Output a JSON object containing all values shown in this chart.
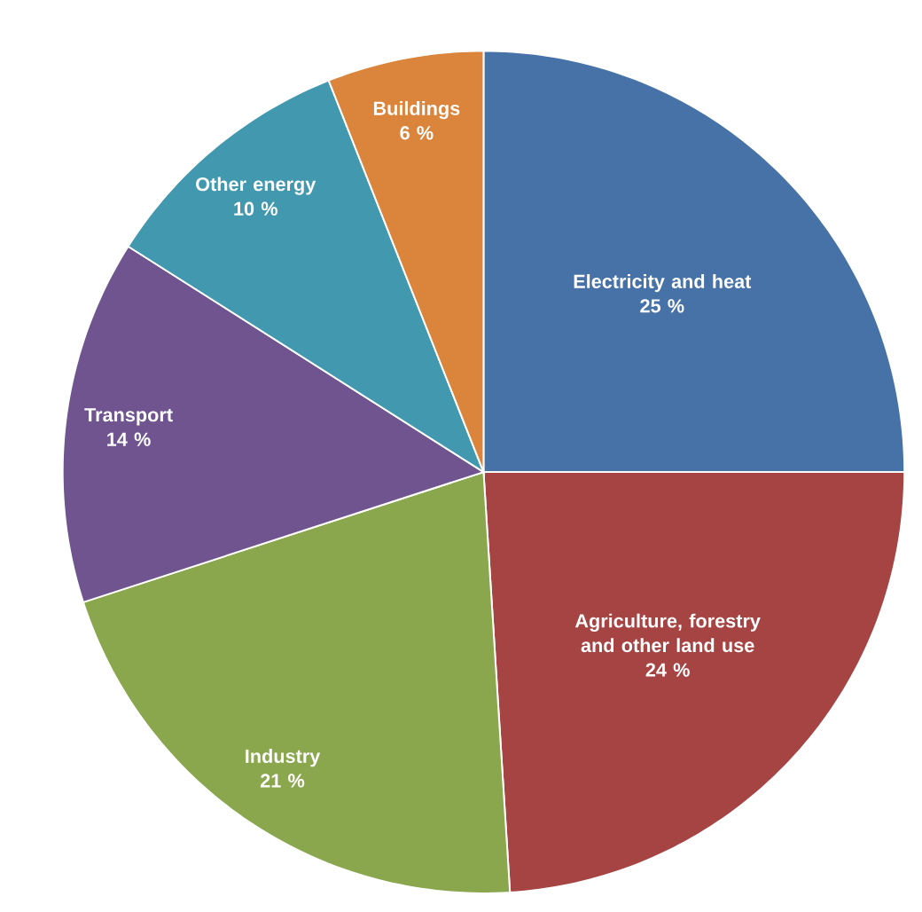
{
  "chart_data": {
    "type": "pie",
    "categories": [
      "Electricity and heat",
      "Agriculture, forestry and other land use",
      "Industry",
      "Transport",
      "Other energy",
      "Buildings"
    ],
    "values": [
      25,
      24,
      21,
      14,
      10,
      6
    ],
    "value_labels": [
      "25 %",
      "24 %",
      "21 %",
      "14 %",
      "10 %",
      "6 %"
    ],
    "colors": [
      "#4772a8",
      "#a64443",
      "#8aa74e",
      "#6f5490",
      "#4198af",
      "#da843c"
    ]
  }
}
